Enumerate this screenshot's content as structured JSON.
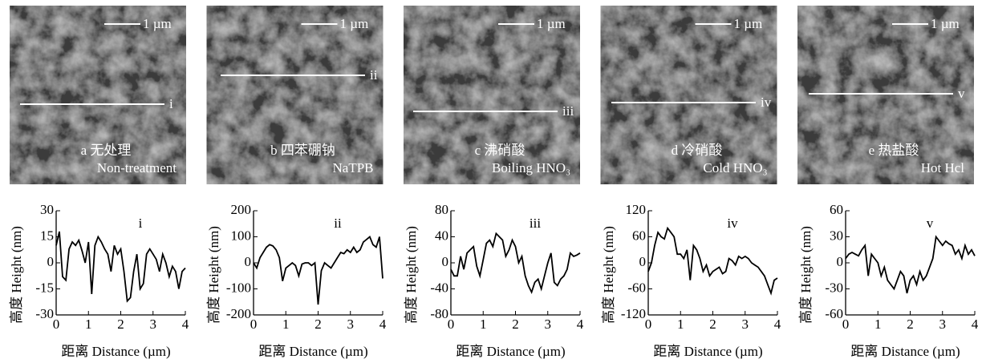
{
  "images": [
    {
      "scale_bar": "1 µm",
      "line_label": "i",
      "caption_cn": "a 无处理",
      "caption_en": "Non-treatment"
    },
    {
      "scale_bar": "1 µm",
      "line_label": "ii",
      "caption_cn": "b 四苯硼钠",
      "caption_en": "NaTPB"
    },
    {
      "scale_bar": "1 µm",
      "line_label": "iii",
      "caption_cn": "c 沸硝酸",
      "caption_en": "Boiling HNO₃"
    },
    {
      "scale_bar": "1 µm",
      "line_label": "iv",
      "caption_cn": "d 冷硝酸",
      "caption_en": "Cold HNO₃"
    },
    {
      "scale_bar": "1 µm",
      "line_label": "v",
      "caption_cn": "e 热盐酸",
      "caption_en": "Hot Hcl"
    }
  ],
  "chart_data": [
    {
      "type": "line",
      "annotation": "i",
      "x_label": "距离 Distance (µm)",
      "y_label": "高度 Height (nm)",
      "color": "#000000",
      "x": [
        0,
        0.1,
        0.2,
        0.3,
        0.4,
        0.5,
        0.6,
        0.7,
        0.8,
        0.9,
        1,
        1.1,
        1.2,
        1.3,
        1.4,
        1.5,
        1.6,
        1.7,
        1.8,
        1.9,
        2,
        2.1,
        2.2,
        2.3,
        2.4,
        2.5,
        2.6,
        2.7,
        2.8,
        2.9,
        3,
        3.1,
        3.2,
        3.3,
        3.4,
        3.5,
        3.6,
        3.7,
        3.8,
        3.9,
        4
      ],
      "values": [
        10,
        18,
        -8,
        -10,
        8,
        12,
        10,
        13,
        7,
        0,
        12,
        -18,
        10,
        15,
        12,
        8,
        5,
        -5,
        10,
        5,
        8,
        -5,
        -22,
        -20,
        -5,
        5,
        -15,
        -12,
        5,
        8,
        5,
        2,
        -5,
        5,
        0,
        -8,
        -2,
        -5,
        -15,
        -5,
        -3
      ],
      "xlim": [
        0,
        4
      ],
      "xticks": [
        0,
        1,
        2,
        3,
        4
      ],
      "ylim": [
        -30,
        30
      ],
      "yticks": [
        -30,
        -15,
        0,
        15,
        30
      ]
    },
    {
      "type": "line",
      "annotation": "ii",
      "x_label": "距离 Distance (µm)",
      "y_label": "高度 Height (nm)",
      "color": "#000000",
      "x": [
        0,
        0.1,
        0.2,
        0.3,
        0.4,
        0.5,
        0.6,
        0.7,
        0.8,
        0.9,
        1,
        1.1,
        1.2,
        1.3,
        1.4,
        1.5,
        1.6,
        1.7,
        1.8,
        1.9,
        2,
        2.1,
        2.2,
        2.3,
        2.4,
        2.5,
        2.6,
        2.7,
        2.8,
        2.9,
        3,
        3.1,
        3.2,
        3.3,
        3.4,
        3.5,
        3.6,
        3.7,
        3.8,
        3.9,
        4
      ],
      "values": [
        0,
        -20,
        20,
        40,
        60,
        70,
        65,
        50,
        20,
        -70,
        -20,
        -10,
        0,
        -10,
        -50,
        -5,
        0,
        0,
        -10,
        0,
        -160,
        -30,
        0,
        -10,
        -20,
        0,
        20,
        40,
        35,
        50,
        40,
        60,
        40,
        50,
        80,
        90,
        100,
        70,
        60,
        100,
        -60
      ],
      "xlim": [
        0,
        4
      ],
      "xticks": [
        0,
        1,
        2,
        3,
        4
      ],
      "ylim": [
        -200,
        200
      ],
      "yticks": [
        -200,
        -100,
        0,
        100,
        200
      ]
    },
    {
      "type": "line",
      "annotation": "iii",
      "x_label": "距离 Distance (µm)",
      "y_label": "高度 Height (nm)",
      "color": "#000000",
      "x": [
        0,
        0.1,
        0.2,
        0.3,
        0.4,
        0.5,
        0.6,
        0.7,
        0.8,
        0.9,
        1,
        1.1,
        1.2,
        1.3,
        1.4,
        1.5,
        1.6,
        1.7,
        1.8,
        1.9,
        2,
        2.1,
        2.2,
        2.3,
        2.4,
        2.5,
        2.6,
        2.7,
        2.8,
        2.9,
        3,
        3.1,
        3.2,
        3.3,
        3.4,
        3.5,
        3.6,
        3.7,
        3.8,
        3.9,
        4
      ],
      "values": [
        -10,
        -20,
        -20,
        10,
        -10,
        15,
        20,
        25,
        -5,
        -20,
        5,
        30,
        35,
        25,
        45,
        40,
        35,
        10,
        20,
        35,
        25,
        0,
        10,
        -20,
        -35,
        -45,
        -30,
        -25,
        -40,
        -20,
        0,
        15,
        -30,
        -35,
        -25,
        -20,
        -10,
        15,
        10,
        12,
        15
      ],
      "xlim": [
        0,
        4
      ],
      "xticks": [
        0,
        1,
        2,
        3,
        4
      ],
      "ylim": [
        -80,
        80
      ],
      "yticks": [
        -80,
        -40,
        0,
        40,
        80
      ]
    },
    {
      "type": "line",
      "annotation": "iv",
      "x_label": "距离 Distance (µm)",
      "y_label": "高度 Height (nm)",
      "color": "#000000",
      "x": [
        0,
        0.1,
        0.2,
        0.3,
        0.4,
        0.5,
        0.6,
        0.7,
        0.8,
        0.9,
        1,
        1.1,
        1.2,
        1.3,
        1.4,
        1.5,
        1.6,
        1.7,
        1.8,
        1.9,
        2,
        2.1,
        2.2,
        2.3,
        2.4,
        2.5,
        2.6,
        2.7,
        2.8,
        2.9,
        3,
        3.1,
        3.2,
        3.3,
        3.4,
        3.5,
        3.6,
        3.7,
        3.8,
        3.9,
        4
      ],
      "values": [
        -20,
        0,
        40,
        70,
        60,
        55,
        80,
        70,
        60,
        20,
        20,
        10,
        30,
        -40,
        40,
        30,
        10,
        -20,
        -5,
        -30,
        -20,
        -15,
        -10,
        -25,
        -20,
        10,
        5,
        -5,
        15,
        10,
        15,
        10,
        0,
        -5,
        -10,
        -20,
        -30,
        -50,
        -70,
        -40,
        -35
      ],
      "xlim": [
        0,
        4
      ],
      "xticks": [
        0,
        1,
        2,
        3,
        4
      ],
      "ylim": [
        -120,
        120
      ],
      "yticks": [
        -120,
        -60,
        0,
        60,
        120
      ]
    },
    {
      "type": "line",
      "annotation": "v",
      "x_label": "距离 Distance (µm)",
      "y_label": "高度 Height (nm)",
      "color": "#000000",
      "x": [
        0,
        0.1,
        0.2,
        0.3,
        0.4,
        0.5,
        0.6,
        0.7,
        0.8,
        0.9,
        1,
        1.1,
        1.2,
        1.3,
        1.4,
        1.5,
        1.6,
        1.7,
        1.8,
        1.9,
        2,
        2.1,
        2.2,
        2.3,
        2.4,
        2.5,
        2.6,
        2.7,
        2.8,
        2.9,
        3,
        3.1,
        3.2,
        3.3,
        3.4,
        3.5,
        3.6,
        3.7,
        3.8,
        3.9,
        4
      ],
      "values": [
        5,
        10,
        12,
        10,
        8,
        15,
        20,
        -15,
        10,
        5,
        0,
        -15,
        -5,
        -20,
        -25,
        -30,
        -20,
        -10,
        -15,
        -35,
        -20,
        -15,
        -25,
        -10,
        -20,
        -15,
        -5,
        5,
        30,
        25,
        20,
        25,
        22,
        20,
        10,
        15,
        5,
        20,
        10,
        15,
        8
      ],
      "xlim": [
        0,
        4
      ],
      "xticks": [
        0,
        1,
        2,
        3,
        4
      ],
      "ylim": [
        -60,
        60
      ],
      "yticks": [
        -60,
        -30,
        0,
        30,
        60
      ]
    }
  ]
}
